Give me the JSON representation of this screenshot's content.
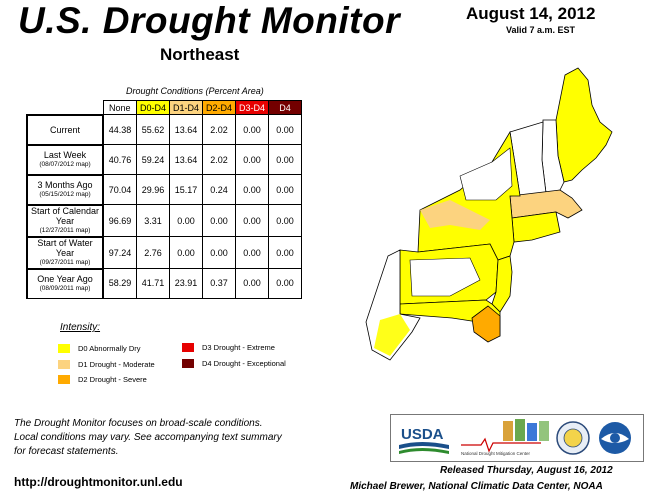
{
  "header": {
    "title": "U.S. Drought Monitor",
    "region": "Northeast",
    "date": "August 14, 2012",
    "valid": "Valid 7 a.m. EST"
  },
  "table": {
    "caption": "Drought Conditions (Percent Area)",
    "columns": [
      "None",
      "D0-D4",
      "D1-D4",
      "D2-D4",
      "D3-D4",
      "D4"
    ],
    "column_colors": [
      "#ffffff",
      "#ffff00",
      "#fcd37f",
      "#ffaa00",
      "#e60000",
      "#730000"
    ],
    "rows": [
      {
        "label": "Current",
        "sub": "",
        "values": [
          "44.38",
          "55.62",
          "13.64",
          "2.02",
          "0.00",
          "0.00"
        ]
      },
      {
        "label": "Last Week",
        "sub": "(08/07/2012 map)",
        "values": [
          "40.76",
          "59.24",
          "13.64",
          "2.02",
          "0.00",
          "0.00"
        ]
      },
      {
        "label": "3 Months Ago",
        "sub": "(05/15/2012 map)",
        "values": [
          "70.04",
          "29.96",
          "15.17",
          "0.24",
          "0.00",
          "0.00"
        ]
      },
      {
        "label": "Start of Calendar Year",
        "sub": "(12/27/2011 map)",
        "values": [
          "96.69",
          "3.31",
          "0.00",
          "0.00",
          "0.00",
          "0.00"
        ]
      },
      {
        "label": "Start of Water Year",
        "sub": "(09/27/2011 map)",
        "values": [
          "97.24",
          "2.76",
          "0.00",
          "0.00",
          "0.00",
          "0.00"
        ]
      },
      {
        "label": "One Year Ago",
        "sub": "(08/09/2011 map)",
        "values": [
          "58.29",
          "41.71",
          "23.91",
          "0.37",
          "0.00",
          "0.00"
        ]
      }
    ]
  },
  "legend": {
    "title": "Intensity:",
    "items": [
      {
        "label": "D0 Abnormally Dry",
        "color": "#ffff00"
      },
      {
        "label": "D1 Drought - Moderate",
        "color": "#fcd37f"
      },
      {
        "label": "D2 Drought - Severe",
        "color": "#ffaa00"
      },
      {
        "label": "D3 Drought - Extreme",
        "color": "#e60000"
      },
      {
        "label": "D4 Drought - Exceptional",
        "color": "#730000"
      }
    ]
  },
  "footer": {
    "disclaimer_1": "The Drought Monitor focuses on broad-scale conditions.",
    "disclaimer_2": "Local conditions may vary. See accompanying text summary",
    "disclaimer_3": "for forecast statements.",
    "url": "http://droughtmonitor.unl.edu",
    "released": "Released Thursday, August 16, 2012",
    "author": "Michael Brewer, National Climatic Data Center, NOAA"
  },
  "logos": {
    "usda": "USDA",
    "ndmc": "National Drought Mitigation Center",
    "icons": [
      "usda-logo",
      "ndmc-logo",
      "commerce-seal",
      "noaa-logo"
    ]
  },
  "map": {
    "region": "Northeast",
    "drought_area_colors": [
      "#ffff00",
      "#fcd37f",
      "#ffaa00"
    ]
  }
}
